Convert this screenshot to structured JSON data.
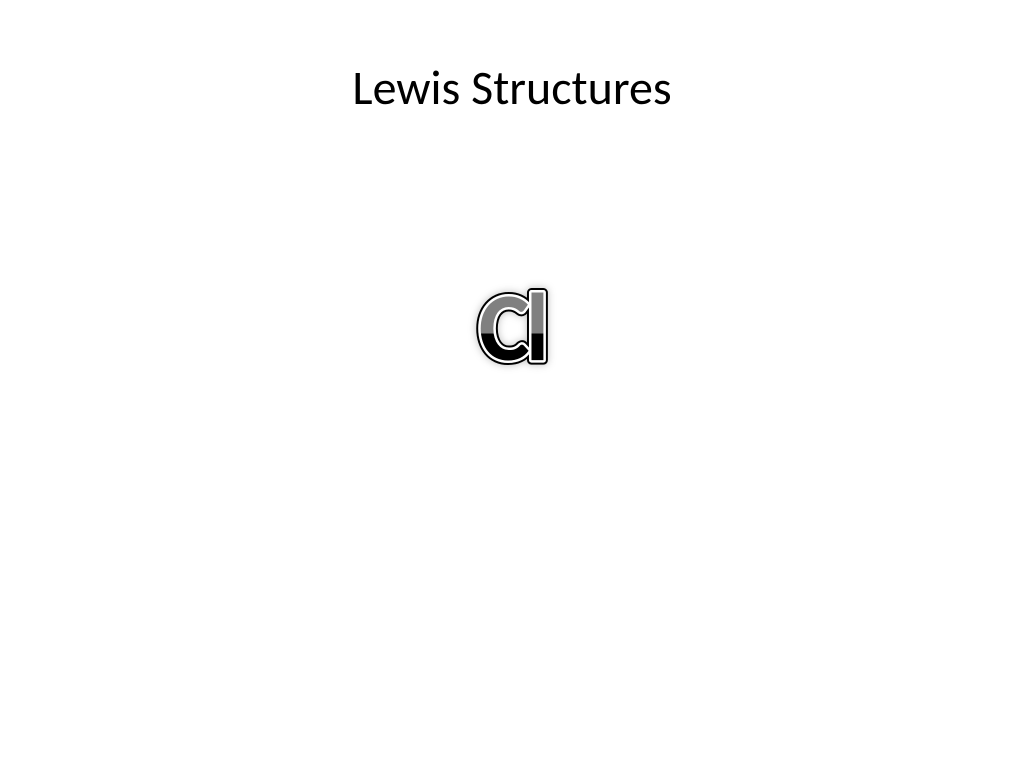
{
  "slide": {
    "title": "Lewis Structures",
    "title_fontsize": 48,
    "title_color": "#000000",
    "background_color": "#ffffff"
  },
  "element": {
    "symbol": "Cl",
    "fontsize": 96,
    "font_weight": 700,
    "gradient_top_color": "#808080",
    "gradient_bottom_color": "#000000",
    "gradient_split": 0.55,
    "outline_inner_color": "#ffffff",
    "outline_outer_color": "#000000",
    "outline_inner_width": 2.5,
    "outline_outer_width": 4.5
  }
}
